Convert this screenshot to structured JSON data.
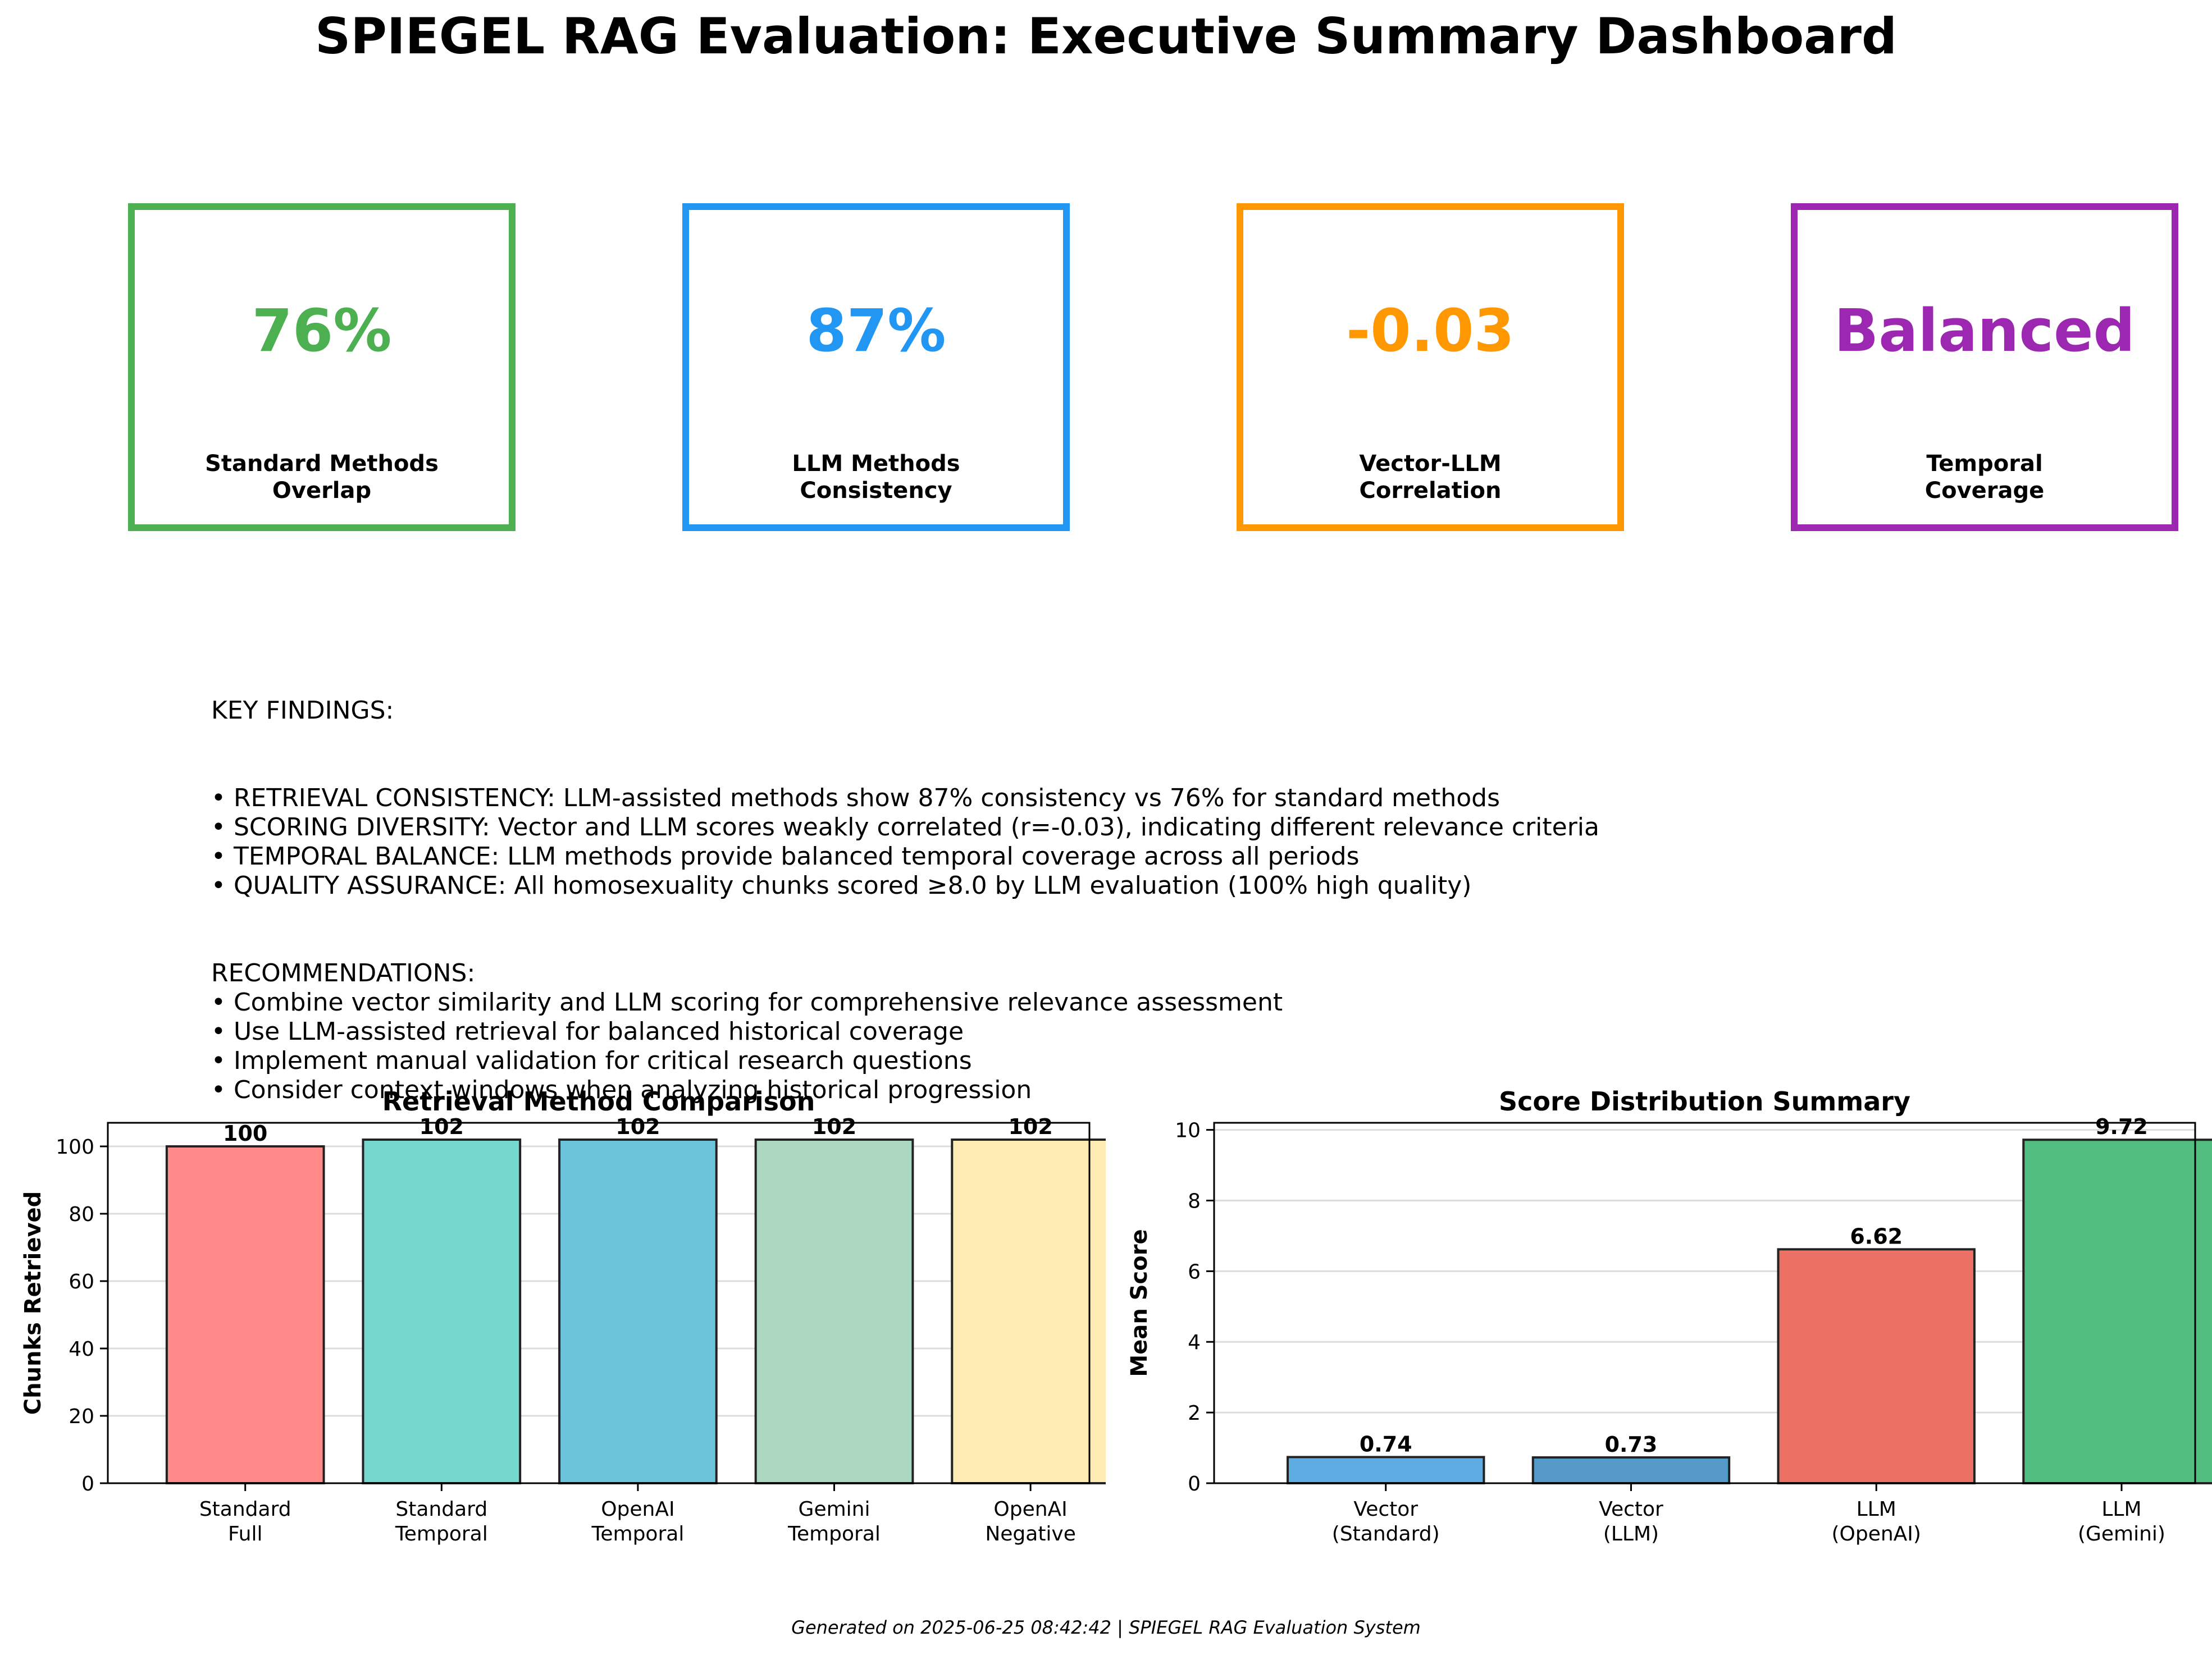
{
  "title": "SPIEGEL RAG Evaluation: Executive Summary Dashboard",
  "kpis": [
    {
      "value": "76%",
      "label": "Standard Methods\nOverlap",
      "color": "#4CAF50"
    },
    {
      "value": "87%",
      "label": "LLM Methods\nConsistency",
      "color": "#2196F3"
    },
    {
      "value": "-0.03",
      "label": "Vector-LLM\nCorrelation",
      "color": "#FF9800"
    },
    {
      "value": "Balanced",
      "label": "Temporal\nCoverage",
      "color": "#9C27B0"
    }
  ],
  "findings": {
    "heading": "KEY FINDINGS:",
    "items": [
      "• RETRIEVAL CONSISTENCY: LLM-assisted methods show 87% consistency vs 76% for standard methods",
      "• SCORING DIVERSITY: Vector and LLM scores weakly correlated (r=-0.03), indicating different relevance criteria",
      "• TEMPORAL BALANCE: LLM methods provide balanced temporal coverage across all periods",
      "• QUALITY ASSURANCE: All homosexuality chunks scored ≥8.0 by LLM evaluation (100% high quality)"
    ]
  },
  "recommendations": {
    "heading": "RECOMMENDATIONS:",
    "items": [
      "• Combine vector similarity and LLM scoring for comprehensive relevance assessment",
      "• Use LLM-assisted retrieval for balanced historical coverage",
      "• Implement manual validation for critical research questions",
      "• Consider context windows when analyzing historical progression"
    ]
  },
  "chart_data": [
    {
      "type": "bar",
      "title": "Retrieval Method Comparison",
      "xlabel": "",
      "ylabel": "Chunks Retrieved",
      "categories": [
        "Standard\nFull",
        "Standard\nTemporal",
        "OpenAI\nTemporal",
        "Gemini\nTemporal",
        "OpenAI\nNegative"
      ],
      "values": [
        100,
        102,
        102,
        102,
        102
      ],
      "value_labels": [
        "100",
        "102",
        "102",
        "102",
        "102"
      ],
      "colors": [
        "#FF8A8A",
        "#76D7CF",
        "#6CC4DA",
        "#ACD8C2",
        "#FEEBB4"
      ],
      "ylim": [
        0,
        107
      ],
      "yticks": [
        0,
        20,
        40,
        60,
        80,
        100
      ],
      "grid": true
    },
    {
      "type": "bar",
      "title": "Score Distribution Summary",
      "xlabel": "",
      "ylabel": "Mean Score",
      "categories": [
        "Vector\n(Standard)",
        "Vector\n(LLM)",
        "LLM\n(OpenAI)",
        "LLM\n(Gemini)"
      ],
      "values": [
        0.74,
        0.73,
        6.62,
        9.72
      ],
      "value_labels": [
        "0.74",
        "0.73",
        "6.62",
        "9.72"
      ],
      "colors": [
        "#5DADE2",
        "#5499C7",
        "#EC7063",
        "#52BE80"
      ],
      "ylim": [
        0,
        10.2
      ],
      "yticks": [
        0,
        2,
        4,
        6,
        8,
        10
      ],
      "grid": true
    }
  ],
  "footer": "Generated on 2025-06-25 08:42:42 | SPIEGEL RAG Evaluation System"
}
